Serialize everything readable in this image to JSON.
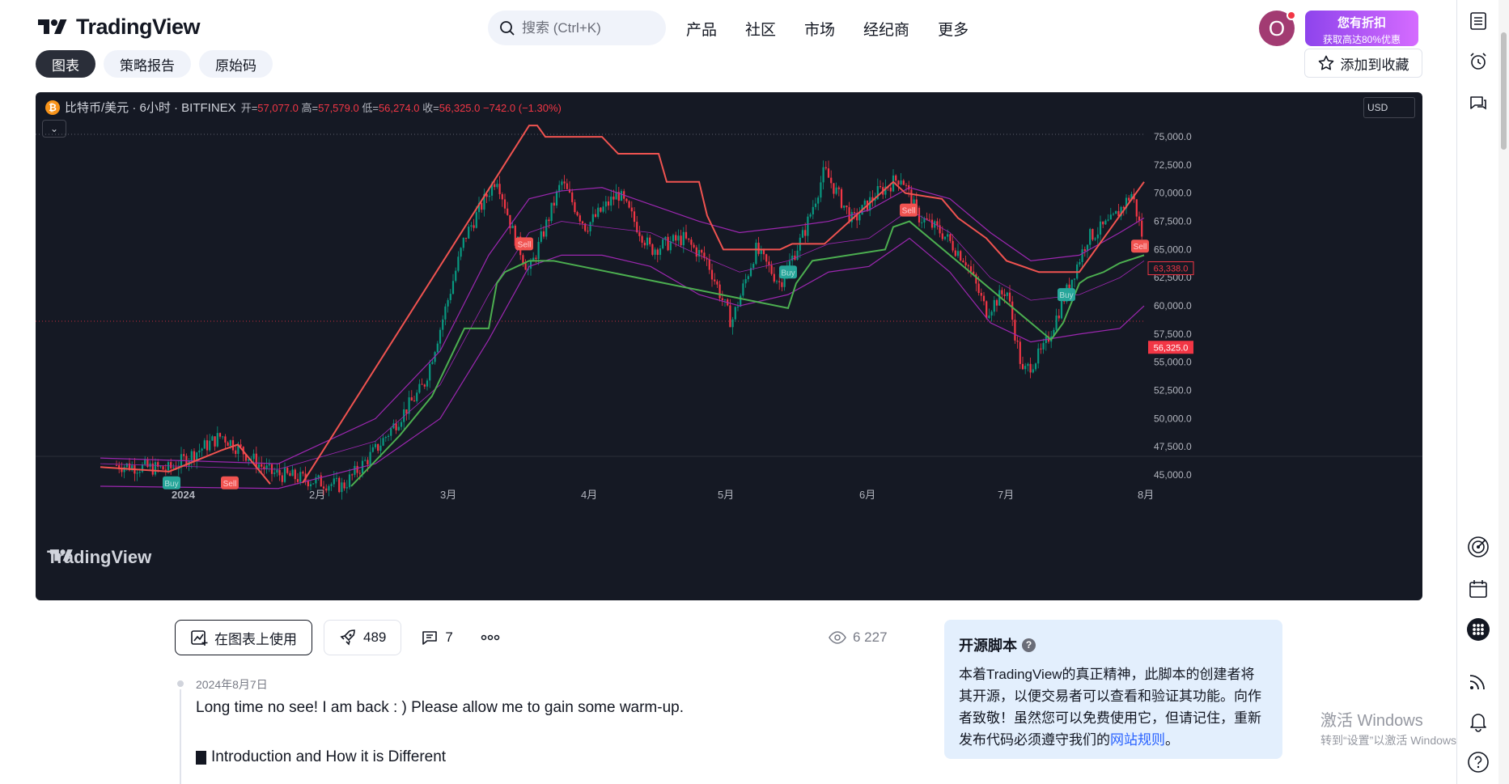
{
  "header": {
    "brand": "TradingView",
    "search_placeholder": "搜索 (Ctrl+K)",
    "nav": [
      "产品",
      "社区",
      "市场",
      "经纪商",
      "更多"
    ],
    "avatar_letter": "O",
    "promo_line1": "您有折扣",
    "promo_line2": "获取高达80%优惠"
  },
  "tabs": [
    "图表",
    "策略报告",
    "原始码"
  ],
  "favorite_label": "添加到收藏",
  "chart": {
    "symbol": "比特币/美元 · 6小时 · BITFINEX",
    "open_label": "开=",
    "open": "57,077.0",
    "high_label": "高=",
    "high": "57,579.0",
    "low_label": "低=",
    "low": "56,274.0",
    "close_label": "收=",
    "close": "56,325.0",
    "change": "−742.0 (−1.30%)",
    "currency": "USD",
    "watermark": "TradingView",
    "price_ticks": [
      "75,000.0",
      "72,500.0",
      "70,000.0",
      "67,500.0",
      "65,000.0",
      "62,500.0",
      "60,000.0",
      "57,500.0",
      "55,000.0",
      "52,500.0",
      "50,000.0",
      "47,500.0",
      "45,000.0"
    ],
    "time_ticks": [
      "2024",
      "2月",
      "3月",
      "4月",
      "5月",
      "6月",
      "7月",
      "8月"
    ],
    "last_price": "56,325.0",
    "indicator_price": "63,338.0",
    "signal_buy": "Buy",
    "signal_sell": "Sell",
    "colors": {
      "up": "#089981",
      "down": "#f23645",
      "bg": "#151924",
      "bands": "#9c27b0",
      "stop_up": "#4caf50",
      "stop_down": "#f05350"
    }
  },
  "actions": {
    "use_on_chart": "在图表上使用",
    "boosts": "489",
    "comments": "7",
    "views": "6 227"
  },
  "post": {
    "date": "2024年8月7日",
    "line1": "Long time no see! I am back : ) Please allow me to gain some warm-up.",
    "line2": "Introduction and How it is Different"
  },
  "open_source": {
    "title": "开源脚本",
    "body": "本着TradingView的真正精神，此脚本的创建者将其开源，以便交易者可以查看和验证其功能。向作者致敬！虽然您可以免费使用它，但请记住，重新发布代码必须遵守我们的",
    "link": "网站规则",
    "end": "。"
  },
  "windows_activation": {
    "line1": "激活 Windows",
    "line2": "转到“设置”以激活 Windows。"
  }
}
